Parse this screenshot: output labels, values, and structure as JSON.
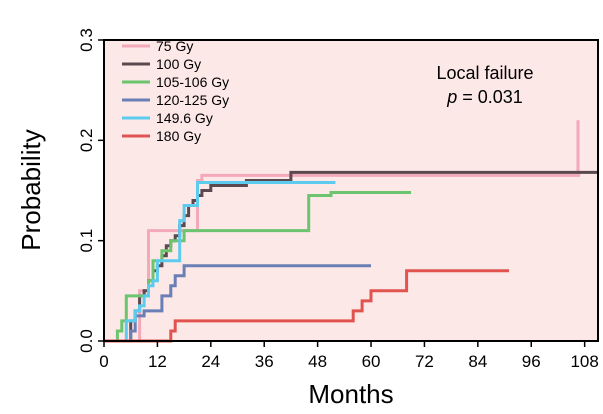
{
  "chart_data": {
    "type": "line",
    "step": true,
    "xlabel": "Months",
    "ylabel": "Probability",
    "xlim": [
      0,
      111
    ],
    "ylim": [
      0,
      0.3
    ],
    "xticks": [
      "0",
      "12",
      "24",
      "36",
      "48",
      "60",
      "72",
      "84",
      "96",
      "108"
    ],
    "yticks": [
      "0.0",
      "0.1",
      "0.2",
      "0.3"
    ],
    "background": "#fde8e8",
    "legend_position": "top-left",
    "annotation": {
      "line1": "Local failure",
      "p_symbol": "p",
      "p_rest": " = 0.031"
    },
    "series": [
      {
        "name": "75 Gy",
        "color": "#f4a9bb",
        "points": [
          [
            0,
            0
          ],
          [
            7,
            0
          ],
          [
            8,
            0.05
          ],
          [
            10,
            0.11
          ],
          [
            20,
            0.11
          ],
          [
            21,
            0.16
          ],
          [
            22,
            0.165
          ],
          [
            106,
            0.165
          ],
          [
            106.5,
            0.22
          ],
          [
            106.5,
            0.165
          ],
          [
            107,
            0.165
          ]
        ]
      },
      {
        "name": "100 Gy",
        "color": "#5a4a50",
        "points": [
          [
            0,
            0
          ],
          [
            5,
            0
          ],
          [
            6,
            0.02
          ],
          [
            7,
            0.03
          ],
          [
            8,
            0.045
          ],
          [
            9,
            0.05
          ],
          [
            10,
            0.06
          ],
          [
            11,
            0.07
          ],
          [
            12,
            0.075
          ],
          [
            13,
            0.085
          ],
          [
            14,
            0.095
          ],
          [
            15,
            0.1
          ],
          [
            16,
            0.105
          ],
          [
            17,
            0.115
          ],
          [
            18,
            0.125
          ],
          [
            19,
            0.135
          ],
          [
            20,
            0.14
          ],
          [
            21,
            0.145
          ],
          [
            22,
            0.15
          ],
          [
            24,
            0.155
          ],
          [
            32,
            0.16
          ],
          [
            42,
            0.168
          ],
          [
            111,
            0.168
          ]
        ]
      },
      {
        "name": "105-106 Gy",
        "color": "#6cc46e",
        "points": [
          [
            0,
            0
          ],
          [
            3,
            0
          ],
          [
            3,
            0.01
          ],
          [
            4,
            0.02
          ],
          [
            5,
            0.045
          ],
          [
            9,
            0.045
          ],
          [
            10,
            0.06
          ],
          [
            11,
            0.08
          ],
          [
            13,
            0.09
          ],
          [
            15,
            0.1
          ],
          [
            18,
            0.11
          ],
          [
            46,
            0.11
          ],
          [
            46,
            0.145
          ],
          [
            51,
            0.145
          ],
          [
            51,
            0.148
          ],
          [
            69,
            0.148
          ]
        ]
      },
      {
        "name": "120-125 Gy",
        "color": "#6a7fb5",
        "points": [
          [
            0,
            0
          ],
          [
            5,
            0
          ],
          [
            6,
            0.01
          ],
          [
            7,
            0.025
          ],
          [
            9,
            0.03
          ],
          [
            12,
            0.03
          ],
          [
            13,
            0.045
          ],
          [
            15,
            0.055
          ],
          [
            16,
            0.065
          ],
          [
            18,
            0.075
          ],
          [
            60,
            0.075
          ]
        ]
      },
      {
        "name": "149.6 Gy",
        "color": "#5ccbee",
        "points": [
          [
            0,
            0
          ],
          [
            4,
            0
          ],
          [
            5,
            0.02
          ],
          [
            7,
            0.03
          ],
          [
            8,
            0.035
          ],
          [
            9,
            0.045
          ],
          [
            10,
            0.055
          ],
          [
            11,
            0.06
          ],
          [
            12,
            0.08
          ],
          [
            17,
            0.08
          ],
          [
            17,
            0.12
          ],
          [
            18,
            0.135
          ],
          [
            21,
            0.135
          ],
          [
            21,
            0.158
          ],
          [
            52,
            0.158
          ]
        ]
      },
      {
        "name": "180 Gy",
        "color": "#e0534f",
        "points": [
          [
            0,
            0
          ],
          [
            15,
            0
          ],
          [
            15,
            0.01
          ],
          [
            16,
            0.02
          ],
          [
            56,
            0.02
          ],
          [
            56,
            0.03
          ],
          [
            58,
            0.03
          ],
          [
            58,
            0.04
          ],
          [
            60,
            0.04
          ],
          [
            60,
            0.05
          ],
          [
            68,
            0.05
          ],
          [
            68,
            0.07
          ],
          [
            91,
            0.07
          ]
        ]
      }
    ]
  }
}
